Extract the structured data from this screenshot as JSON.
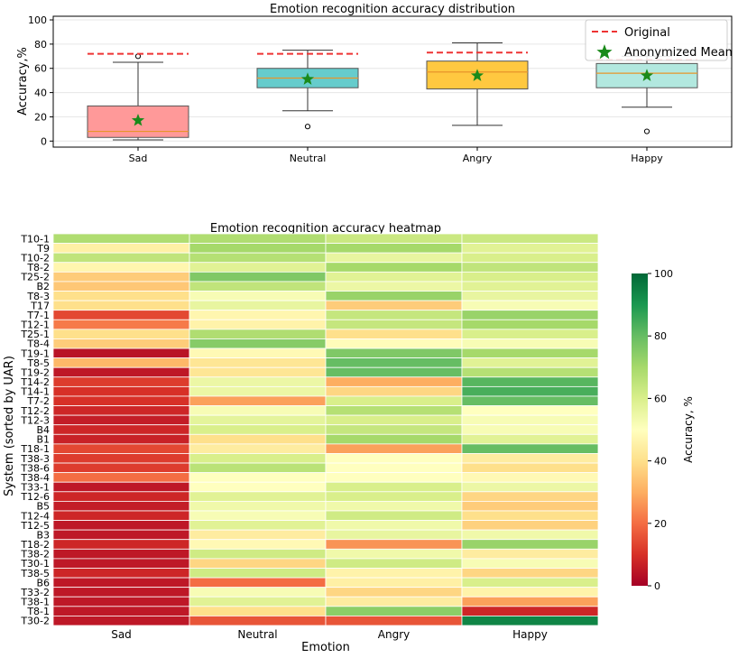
{
  "chart_data": [
    {
      "type": "box",
      "title": "Emotion recognition accuracy distribution",
      "ylabel": "Accuracy,%",
      "xlabel": "",
      "ylim": [
        -5,
        103
      ],
      "yticks": [
        "0",
        "20",
        "40",
        "60",
        "80",
        "100"
      ],
      "categories": [
        "Sad",
        "Neutral",
        "Angry",
        "Happy"
      ],
      "colors": [
        "#ff9999",
        "#66cccc",
        "#ffc840",
        "#b2e8df"
      ],
      "boxes": [
        {
          "q1": 3,
          "median": 8,
          "q3": 29,
          "whislo": 1,
          "whishi": 65,
          "mean": 17,
          "original": 72,
          "fliers": [
            70
          ]
        },
        {
          "q1": 44,
          "median": 52,
          "q3": 60,
          "whislo": 25,
          "whishi": 75,
          "mean": 51,
          "original": 72,
          "fliers": [
            12
          ]
        },
        {
          "q1": 43,
          "median": 57,
          "q3": 66,
          "whislo": 13,
          "whishi": 81,
          "mean": 54,
          "original": 73,
          "fliers": []
        },
        {
          "q1": 44,
          "median": 56,
          "q3": 64,
          "whislo": 28,
          "whishi": 70,
          "mean": 54,
          "original": 67,
          "fliers": [
            8
          ]
        }
      ],
      "legend": {
        "position": "top-right",
        "entries": [
          "Original",
          "Anonymized Mean"
        ]
      }
    },
    {
      "type": "heatmap",
      "title": "Emotion recognition accuracy heatmap",
      "xlabel": "Emotion",
      "ylabel": "System (sorted by UAR)",
      "columns": [
        "Sad",
        "Neutral",
        "Angry",
        "Happy"
      ],
      "rows": [
        "T10-1",
        "T9",
        "T10-2",
        "T8-2",
        "T25-2",
        "B2",
        "T8-3",
        "T17",
        "T7-1",
        "T12-1",
        "T25-1",
        "T8-4",
        "T19-1",
        "T8-5",
        "T19-2",
        "T14-2",
        "T14-1",
        "T7-2",
        "T12-2",
        "T12-3",
        "B4",
        "B1",
        "T18-1",
        "T38-3",
        "T38-6",
        "T38-4",
        "T33-1",
        "T12-6",
        "B5",
        "T12-4",
        "T12-5",
        "B3",
        "T18-2",
        "T38-2",
        "T30-1",
        "T38-5",
        "B6",
        "T33-2",
        "T38-1",
        "T8-1",
        "T30-2"
      ],
      "values": [
        [
          68,
          68,
          63,
          63
        ],
        [
          45,
          70,
          70,
          58
        ],
        [
          65,
          67,
          56,
          60
        ],
        [
          47,
          58,
          70,
          65
        ],
        [
          36,
          76,
          58,
          60
        ],
        [
          35,
          65,
          55,
          58
        ],
        [
          40,
          52,
          72,
          56
        ],
        [
          40,
          56,
          36,
          52
        ],
        [
          14,
          47,
          64,
          72
        ],
        [
          22,
          46,
          64,
          70
        ],
        [
          40,
          68,
          40,
          60
        ],
        [
          36,
          75,
          49,
          52
        ],
        [
          4,
          48,
          76,
          70
        ],
        [
          32,
          42,
          80,
          58
        ],
        [
          5,
          42,
          80,
          67
        ],
        [
          12,
          55,
          30,
          82
        ],
        [
          10,
          55,
          38,
          84
        ],
        [
          10,
          28,
          60,
          80
        ],
        [
          8,
          52,
          67,
          50
        ],
        [
          6,
          57,
          60,
          52
        ],
        [
          8,
          60,
          64,
          52
        ],
        [
          7,
          40,
          70,
          58
        ],
        [
          14,
          44,
          28,
          80
        ],
        [
          12,
          60,
          50,
          44
        ],
        [
          12,
          66,
          50,
          40
        ],
        [
          20,
          50,
          50,
          48
        ],
        [
          5,
          50,
          60,
          55
        ],
        [
          8,
          58,
          60,
          38
        ],
        [
          6,
          54,
          54,
          36
        ],
        [
          8,
          52,
          62,
          40
        ],
        [
          5,
          58,
          54,
          37
        ],
        [
          5,
          44,
          56,
          54
        ],
        [
          8,
          48,
          26,
          72
        ],
        [
          5,
          62,
          54,
          44
        ],
        [
          5,
          38,
          62,
          52
        ],
        [
          8,
          62,
          46,
          38
        ],
        [
          5,
          20,
          45,
          60
        ],
        [
          5,
          52,
          38,
          46
        ],
        [
          5,
          58,
          44,
          28
        ],
        [
          5,
          40,
          74,
          8
        ],
        [
          5,
          16,
          16,
          94
        ]
      ],
      "vmin": 0,
      "vmax": 100,
      "colormap": "RdYlGn",
      "colorbar": {
        "label": "Accuracy, %",
        "ticks": [
          "0",
          "20",
          "40",
          "60",
          "80",
          "100"
        ]
      }
    }
  ]
}
